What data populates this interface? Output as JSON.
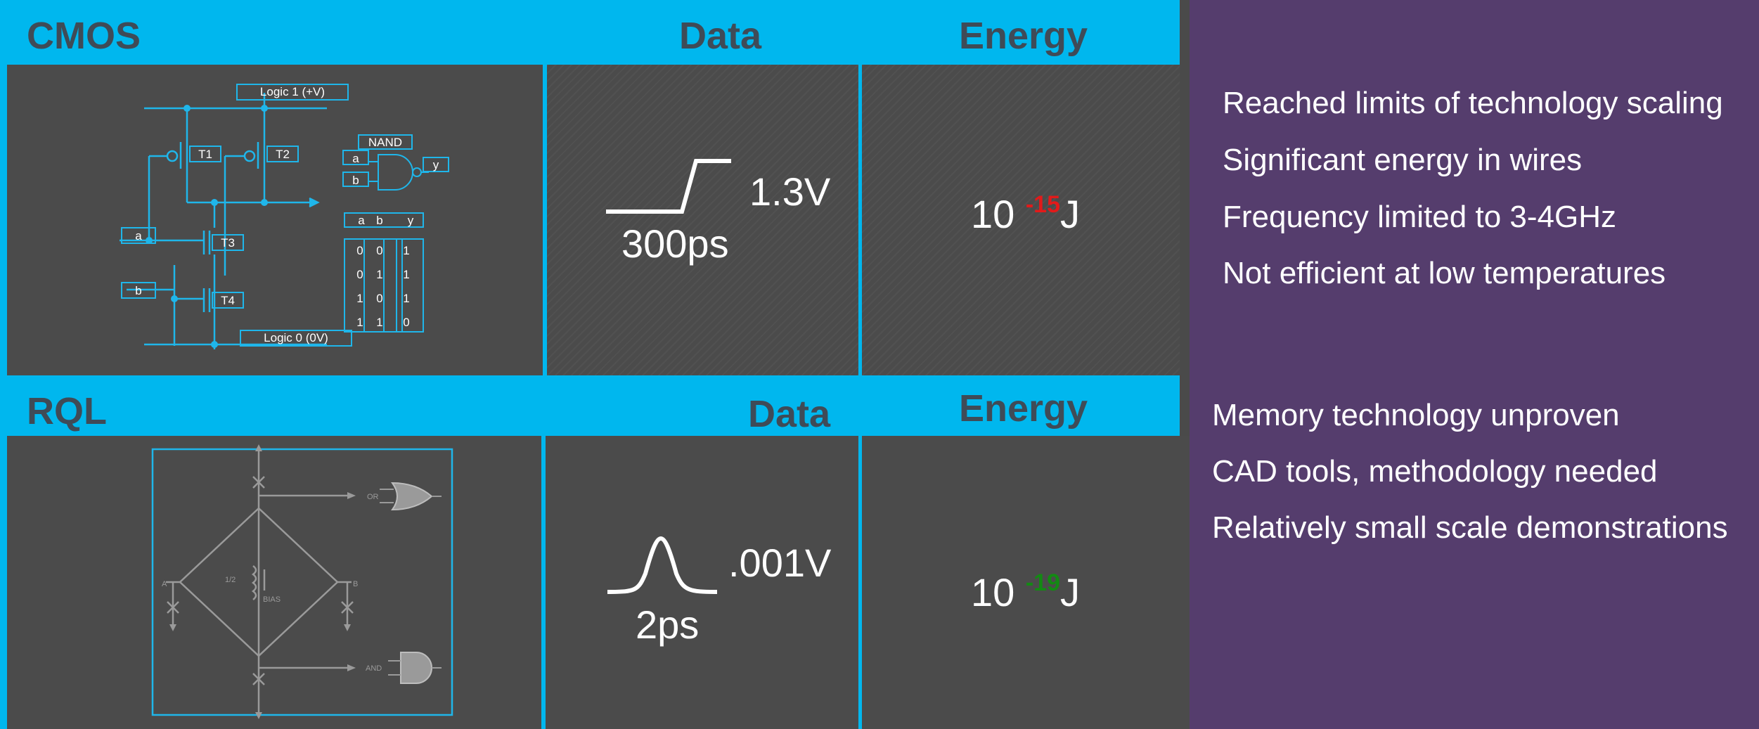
{
  "cmos": {
    "title": "CMOS",
    "data_header": "Data",
    "energy_header": "Energy",
    "schematic": {
      "logic1": "Logic 1 (+V)",
      "logic0": "Logic 0 (0V)",
      "t1": "T1",
      "t2": "T2",
      "t3": "T3",
      "t4": "T4",
      "input_a": "a",
      "input_b": "b",
      "gate_label": "NAND",
      "gate_a": "a",
      "gate_b": "b",
      "gate_y": "y",
      "truth_table": {
        "headers": [
          "a",
          "b",
          "y"
        ],
        "rows": [
          [
            "0",
            "0",
            "1"
          ],
          [
            "0",
            "1",
            "1"
          ],
          [
            "1",
            "0",
            "1"
          ],
          [
            "1",
            "1",
            "0"
          ]
        ]
      }
    },
    "voltage": "1.3V",
    "time": "300ps",
    "energy_base": "10",
    "energy_exp": "-15",
    "energy_unit": "J",
    "bullets": [
      "Reached limits of technology scaling",
      "Significant energy in wires",
      "Frequency limited to 3-4GHz",
      "Not efficient at low temperatures"
    ]
  },
  "rql": {
    "title": "RQL",
    "data_header": "Data",
    "energy_header": "Energy",
    "schematic": {
      "or_label": "OR",
      "and_label": "AND",
      "bias_label": "BIAS",
      "half_label": "1/2",
      "a_label": "A",
      "b_label": "B"
    },
    "voltage": ".001V",
    "time": "2ps",
    "energy_base": "10",
    "energy_exp": "-19",
    "energy_unit": "J",
    "bullets": [
      "Memory technology unproven",
      "CAD tools, methodology needed",
      "Relatively small scale demonstrations"
    ]
  },
  "colors": {
    "header_blue": "#00b7ee",
    "panel_gray": "#4b4b4b",
    "purple": "#553d6d",
    "exp_red": "#e21a1a",
    "exp_green": "#138a13"
  }
}
